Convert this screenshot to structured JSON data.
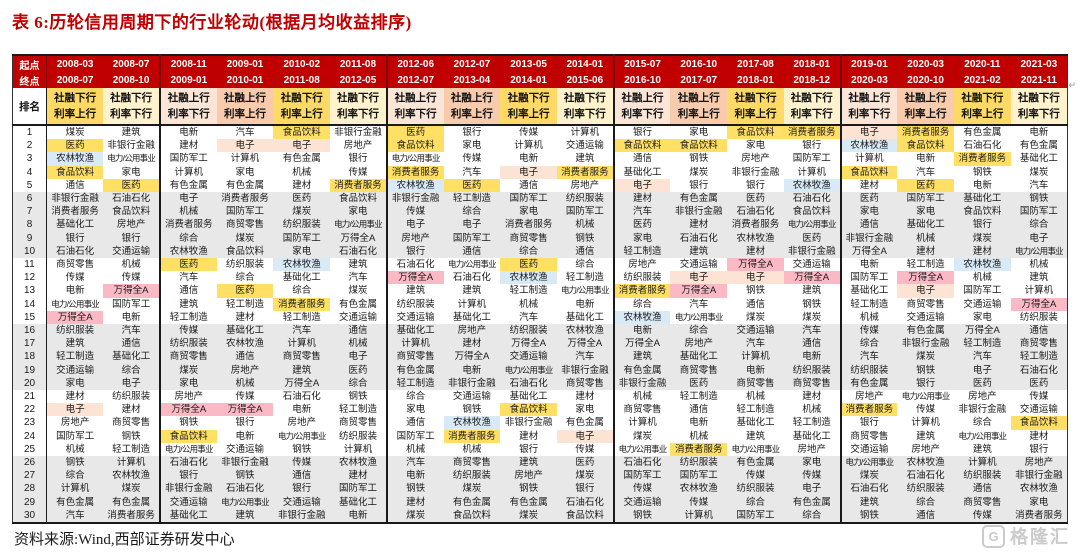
{
  "title": "表 6:历轮信用周期下的行业轮动(根据月均收益排序)",
  "source_note": "资料来源:Wind,西部证券研发中心",
  "return_mark": "↵",
  "logo": {
    "icon_letter": "G",
    "text": "格隆汇"
  },
  "colors": {
    "header_red": "#C00000",
    "phase_down_up": "#FFD966",
    "phase_down_down": "#FFF2CC",
    "phase_up_down": "#FBE5D6",
    "phase_up_up": "#F8CBAD",
    "band_gray": "#E8E8E8",
    "highlight_yellow_bg": "#FFE065",
    "highlight_yellow_text": "#BE8C00",
    "highlight_blue_bg": "#D9EAF7",
    "highlight_blue_text": "#56A0D3",
    "highlight_pink_bg": "#FBB9C5",
    "highlight_pink_text": "#E4233B",
    "highlight_orange_bg": "#FCE3D3",
    "highlight_orange_text": "#ED7D31"
  },
  "table": {
    "start_label": "起点",
    "end_label": "终点",
    "rank_label": "排名",
    "ranks_count": 30,
    "cell_markers": {
      "Y": "yellow-highlight",
      "B": "blue-highlight",
      "P": "pink-highlight",
      "O": "orange-highlight"
    },
    "phase_types": {
      "A": {
        "line1": "社融下行",
        "line2": "利率上行"
      },
      "B": {
        "line1": "社融下行",
        "line2": "利率下行"
      },
      "C": {
        "line1": "社融上行",
        "line2": "利率下行"
      },
      "D": {
        "line1": "社融上行",
        "line2": "利率上行"
      }
    },
    "columns": [
      {
        "start": "2008-03",
        "end": "2008-07",
        "type": "A",
        "cells": [
          "煤炭",
          "医药|Y",
          "农林牧渔|B",
          "食品饮料|Y",
          "通信",
          "非银行金融",
          "消费者服务|Y",
          "基础化工",
          "银行",
          "石油石化",
          "商贸零售",
          "传媒",
          "电新",
          "电力/公用事业",
          "万得全A|P",
          "纺织服装",
          "建筑",
          "轻工制造",
          "交通运输",
          "家电",
          "建材",
          "电子|O",
          "房地产",
          "国防军工",
          "机械",
          "钢铁",
          "综合",
          "计算机",
          "有色金属",
          "汽车"
        ]
      },
      {
        "start": "2008-07",
        "end": "2008-10",
        "type": "B",
        "cells": [
          "建筑",
          "非银行金融",
          "电力/公用事业",
          "家电",
          "医药|Y",
          "石油石化",
          "食品饮料|Y",
          "房地产",
          "银行",
          "交通运输",
          "机械",
          "传媒",
          "万得全A|P",
          "国防军工",
          "电新",
          "汽车",
          "通信",
          "基础化工",
          "综合",
          "电子|O",
          "纺织服装",
          "建材",
          "商贸零售",
          "钢铁",
          "轻工制造",
          "计算机",
          "农林牧渔|B",
          "煤炭",
          "有色金属",
          "消费者服务|Y"
        ]
      },
      {
        "start": "2008-11",
        "end": "2009-01",
        "type": "C",
        "cells": [
          "电新",
          "建材",
          "国防军工",
          "计算机",
          "有色金属",
          "电子|O",
          "机械",
          "消费者服务|Y",
          "综合",
          "农林牧渔|B",
          "医药|Y",
          "汽车",
          "通信",
          "建筑",
          "轻工制造",
          "传媒",
          "纺织服装",
          "商贸零售",
          "煤炭",
          "家电",
          "房地产",
          "万得全A|P",
          "钢铁",
          "食品饮料|Y",
          "电力/公用事业",
          "石油石化",
          "银行",
          "非银行金融",
          "交通运输",
          "基础化工"
        ]
      },
      {
        "start": "2009-01",
        "end": "2010-01",
        "type": "D",
        "cells": [
          "汽车",
          "电子|O",
          "计算机",
          "家电",
          "有色金属",
          "消费者服务|Y",
          "国防军工",
          "商贸零售",
          "煤炭",
          "食品饮料|Y",
          "纺织服装",
          "综合",
          "医药|Y",
          "轻工制造",
          "建材",
          "基础化工",
          "农林牧渔|B",
          "通信",
          "房地产",
          "机械",
          "传媒",
          "万得全A|P",
          "银行",
          "电新",
          "交通运输",
          "非银行金融",
          "钢铁",
          "石油石化",
          "电力/公用事业",
          "建筑"
        ]
      },
      {
        "start": "2010-02",
        "end": "2011-08",
        "type": "A",
        "cells": [
          "食品饮料|Y",
          "电子|O",
          "有色金属",
          "机械",
          "建材",
          "医药|Y",
          "煤炭",
          "纺织服装",
          "国防军工",
          "家电",
          "农林牧渔|B",
          "基础化工",
          "综合",
          "消费者服务|Y",
          "轻工制造",
          "汽车",
          "计算机",
          "商贸零售",
          "建筑",
          "万得全A|P",
          "石油石化",
          "电新",
          "房地产",
          "电力/公用事业",
          "钢铁",
          "传媒",
          "通信",
          "银行",
          "交通运输",
          "非银行金融"
        ]
      },
      {
        "start": "2011-08",
        "end": "2012-05",
        "type": "B",
        "cells": [
          "非银行金融",
          "房地产",
          "银行",
          "传媒",
          "消费者服务|Y",
          "食品饮料|Y",
          "家电",
          "电力/公用事业",
          "万得全A|P",
          "石油石化",
          "建筑",
          "汽车",
          "煤炭",
          "有色金属",
          "交通运输",
          "通信",
          "机械",
          "电子|O",
          "医药|Y",
          "综合",
          "钢铁",
          "轻工制造",
          "商贸零售",
          "纺织服装",
          "计算机",
          "农林牧渔|B",
          "建材",
          "国防军工",
          "基础化工",
          "电新"
        ]
      },
      {
        "start": "2012-06",
        "end": "2012-07",
        "type": "C",
        "cells": [
          "医药|Y",
          "食品饮料|Y",
          "电力/公用事业",
          "消费者服务|Y",
          "农林牧渔|B",
          "非银行金融",
          "传媒",
          "电子|O",
          "房地产",
          "银行",
          "石油石化",
          "万得全A|P",
          "建筑",
          "纺织服装",
          "交通运输",
          "基础化工",
          "计算机",
          "商贸零售",
          "有色金属",
          "轻工制造",
          "综合",
          "家电",
          "通信",
          "国防军工",
          "机械",
          "汽车",
          "电新",
          "钢铁",
          "建材",
          "煤炭"
        ]
      },
      {
        "start": "2012-07",
        "end": "2013-04",
        "type": "D",
        "cells": [
          "银行",
          "家电",
          "传媒",
          "汽车",
          "医药|Y",
          "轻工制造",
          "综合",
          "电子|O",
          "国防军工",
          "通信",
          "电力/公用事业",
          "石油石化",
          "建筑",
          "计算机",
          "基础化工",
          "房地产",
          "建材",
          "万得全A|P",
          "电新",
          "非银行金融",
          "交通运输",
          "钢铁",
          "农林牧渔|B",
          "消费者服务|Y",
          "机械",
          "商贸零售",
          "纺织服装",
          "煤炭",
          "有色金属",
          "食品饮料|Y"
        ]
      },
      {
        "start": "2013-05",
        "end": "2014-01",
        "type": "A",
        "cells": [
          "传媒",
          "计算机",
          "电新",
          "电子|O",
          "通信",
          "国防军工",
          "家电",
          "消费者服务|Y",
          "商贸零售",
          "综合",
          "医药|Y",
          "农林牧渔|B",
          "轻工制造",
          "机械",
          "汽车",
          "纺织服装",
          "万得全A|P",
          "交通运输",
          "电力/公用事业",
          "石油石化",
          "基础化工",
          "食品饮料|Y",
          "非银行金融",
          "建材",
          "银行",
          "建筑",
          "房地产",
          "钢铁",
          "有色金属",
          "煤炭"
        ]
      },
      {
        "start": "2014-01",
        "end": "2015-06",
        "type": "B",
        "cells": [
          "计算机",
          "交通运输",
          "建筑",
          "消费者服务|Y",
          "房地产",
          "纺织服装",
          "国防军工",
          "机械",
          "钢铁",
          "通信",
          "综合",
          "轻工制造",
          "电力/公用事业",
          "电新",
          "基础化工",
          "农林牧渔|B",
          "万得全A|P",
          "汽车",
          "非银行金融",
          "商贸零售",
          "建材",
          "家电",
          "有色金属",
          "电子|O",
          "传媒",
          "医药|Y",
          "煤炭",
          "银行",
          "石油石化",
          "食品饮料|Y"
        ]
      },
      {
        "start": "2015-07",
        "end": "2016-10",
        "type": "C",
        "cells": [
          "银行",
          "食品饮料|Y",
          "通信",
          "基础化工",
          "电子|O",
          "建材",
          "汽车",
          "医药|Y",
          "家电",
          "轻工制造",
          "房地产",
          "纺织服装",
          "消费者服务|Y",
          "综合",
          "农林牧渔|B",
          "电新",
          "万得全A|P",
          "建筑",
          "有色金属",
          "非银行金融",
          "机械",
          "商贸零售",
          "计算机",
          "煤炭",
          "电力/公用事业",
          "石油石化",
          "国防军工",
          "传媒",
          "交通运输",
          "钢铁"
        ]
      },
      {
        "start": "2016-10",
        "end": "2017-07",
        "type": "D",
        "cells": [
          "家电",
          "食品饮料|Y",
          "钢铁",
          "煤炭",
          "银行",
          "有色金属",
          "非银行金融",
          "建材",
          "石油石化",
          "建筑",
          "交通运输",
          "电子|O",
          "万得全A|P",
          "汽车",
          "电力/公用事业",
          "综合",
          "房地产",
          "基础化工",
          "商贸零售",
          "医药|Y",
          "轻工制造",
          "通信",
          "电新",
          "机械",
          "消费者服务|Y",
          "纺织服装",
          "国防军工",
          "农林牧渔|B",
          "传媒",
          "计算机"
        ]
      },
      {
        "start": "2017-08",
        "end": "2018-01",
        "type": "A",
        "cells": [
          "食品饮料|Y",
          "家电",
          "房地产",
          "非银行金融",
          "银行",
          "医药|Y",
          "石油石化",
          "消费者服务|Y",
          "农林牧渔|B",
          "建材",
          "万得全A|P",
          "电子|O",
          "钢铁",
          "通信",
          "煤炭",
          "交通运输",
          "汽车",
          "计算机",
          "电新",
          "商贸零售",
          "机械",
          "轻工制造",
          "基础化工",
          "建筑",
          "电力/公用事业",
          "有色金属",
          "传媒",
          "纺织服装",
          "综合",
          "国防军工"
        ]
      },
      {
        "start": "2018-01",
        "end": "2018-12",
        "type": "B",
        "cells": [
          "消费者服务|Y",
          "银行",
          "国防军工",
          "计算机",
          "农林牧渔|B",
          "石油石化",
          "食品饮料|Y",
          "电力/公用事业",
          "医药|Y",
          "非银行金融",
          "交通运输",
          "万得全A|P",
          "建筑",
          "钢铁",
          "煤炭",
          "汽车",
          "通信",
          "电新",
          "纺织服装",
          "商贸零售",
          "建材",
          "机械",
          "轻工制造",
          "基础化工",
          "房地产",
          "家电",
          "传媒",
          "电子|O",
          "有色金属",
          "综合"
        ]
      },
      {
        "start": "2019-01",
        "end": "2020-03",
        "type": "C",
        "cells": [
          "电子|O",
          "农林牧渔|B",
          "计算机",
          "食品饮料|Y",
          "建材",
          "医药|Y",
          "家电",
          "通信",
          "非银行金融",
          "万得全A|P",
          "电新",
          "国防军工",
          "基础化工",
          "轻工制造",
          "机械",
          "传媒",
          "综合",
          "汽车",
          "纺织服装",
          "有色金属",
          "房地产",
          "消费者服务|Y",
          "银行",
          "商贸零售",
          "交通运输",
          "电力/公用事业",
          "煤炭",
          "石油石化",
          "建筑",
          "钢铁"
        ]
      },
      {
        "start": "2020-03",
        "end": "2020-10",
        "type": "D",
        "cells": [
          "消费者服务|Y",
          "食品饮料|Y",
          "电新",
          "汽车",
          "医药|Y",
          "国防军工",
          "家电",
          "基础化工",
          "机械",
          "建材",
          "轻工制造",
          "万得全A|P",
          "电子|O",
          "商贸零售",
          "交通运输",
          "有色金属",
          "非银行金融",
          "煤炭",
          "钢铁",
          "银行",
          "电力/公用事业",
          "传媒",
          "计算机",
          "建筑",
          "房地产",
          "农林牧渔|B",
          "石油石化",
          "纺织服装",
          "综合",
          "通信"
        ]
      },
      {
        "start": "2020-11",
        "end": "2021-02",
        "type": "A",
        "cells": [
          "有色金属",
          "石油石化",
          "消费者服务|Y",
          "钢铁",
          "电新",
          "基础化工",
          "食品饮料|Y",
          "银行",
          "煤炭",
          "建材",
          "农林牧渔|B",
          "机械",
          "国防军工",
          "交通运输",
          "家电",
          "万得全A|P",
          "轻工制造",
          "汽车",
          "电子|O",
          "医药|Y",
          "房地产",
          "非银行金融",
          "综合",
          "电力/公用事业",
          "建筑",
          "计算机",
          "纺织服装",
          "通信",
          "商贸零售",
          "传媒"
        ]
      },
      {
        "start": "2021-03",
        "end": "2021-11",
        "type": "B",
        "cells": [
          "电新",
          "有色金属",
          "基础化工",
          "煤炭",
          "汽车",
          "钢铁",
          "国防军工",
          "综合",
          "电子|O",
          "电力/公用事业",
          "机械",
          "建筑",
          "计算机",
          "万得全A|P",
          "纺织服装",
          "通信",
          "商贸零售",
          "轻工制造",
          "石油石化",
          "医药|Y",
          "传媒",
          "交通运输",
          "食品饮料|Y",
          "建材",
          "银行",
          "房地产",
          "非银行金融",
          "农林牧渔|B",
          "家电",
          "消费者服务|Y"
        ]
      }
    ]
  }
}
